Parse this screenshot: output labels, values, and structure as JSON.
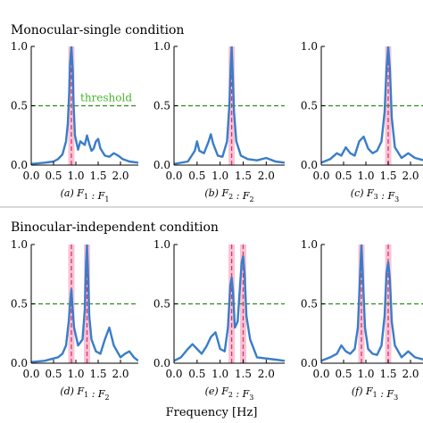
{
  "figure": {
    "section_titles": [
      "Monocular-single condition",
      "Binocular-independent condition"
    ],
    "xlabel": "Frequency [Hz]",
    "threshold_label": "threshold",
    "colors": {
      "curve": "#3a7dc9",
      "threshold": "#2e8b1f",
      "marker": "#e0326b",
      "band": "#f7b8cc",
      "axis": "#000000"
    }
  },
  "chart_data": [
    {
      "id": "a",
      "type": "line",
      "caption": "(a) F₁ : F₁",
      "caption_parts": {
        "index": "(a)",
        "left": "F",
        "left_sub": "1",
        "right": "F",
        "right_sub": "1"
      },
      "xlim": [
        0,
        2.4
      ],
      "ylim": [
        0,
        1.0
      ],
      "xticks": [
        "0.0",
        "0.5",
        "1.0",
        "1.5",
        "2.0"
      ],
      "yticks": [
        "0.0",
        "0.5",
        "1.0"
      ],
      "threshold": 0.5,
      "markers": [
        0.9
      ],
      "series": [
        {
          "x": [
            0,
            0.3,
            0.5,
            0.6,
            0.7,
            0.78,
            0.82,
            0.85,
            0.87,
            0.9,
            0.93,
            0.95,
            0.98,
            1.05,
            1.1,
            1.2,
            1.25,
            1.3,
            1.35,
            1.4,
            1.45,
            1.5,
            1.55,
            1.65,
            1.75,
            1.85,
            1.95,
            2.05,
            2.2,
            2.4
          ],
          "y": [
            0.01,
            0.02,
            0.03,
            0.05,
            0.09,
            0.2,
            0.35,
            0.6,
            0.85,
            1.0,
            0.8,
            0.5,
            0.25,
            0.13,
            0.2,
            0.17,
            0.25,
            0.18,
            0.12,
            0.14,
            0.2,
            0.22,
            0.14,
            0.08,
            0.07,
            0.1,
            0.08,
            0.05,
            0.03,
            0.02
          ]
        }
      ]
    },
    {
      "id": "b",
      "type": "line",
      "caption": "(b) F₂ : F₂",
      "caption_parts": {
        "index": "(b)",
        "left": "F",
        "left_sub": "2",
        "right": "F",
        "right_sub": "2"
      },
      "xlim": [
        0,
        2.4
      ],
      "ylim": [
        0,
        1.0
      ],
      "xticks": [
        "0.0",
        "0.5",
        "1.0",
        "1.5",
        "2.0"
      ],
      "yticks": [
        "0.0",
        "0.5",
        "1.0"
      ],
      "threshold": 0.5,
      "markers": [
        1.25
      ],
      "series": [
        {
          "x": [
            0,
            0.3,
            0.45,
            0.5,
            0.55,
            0.65,
            0.75,
            0.8,
            0.85,
            0.95,
            1.05,
            1.15,
            1.2,
            1.23,
            1.25,
            1.27,
            1.3,
            1.35,
            1.45,
            1.6,
            1.8,
            2.0,
            2.2,
            2.4
          ],
          "y": [
            0.01,
            0.03,
            0.12,
            0.2,
            0.12,
            0.1,
            0.2,
            0.26,
            0.18,
            0.08,
            0.07,
            0.2,
            0.5,
            0.85,
            1.0,
            0.8,
            0.45,
            0.2,
            0.08,
            0.05,
            0.04,
            0.06,
            0.03,
            0.02
          ]
        }
      ]
    },
    {
      "id": "c",
      "type": "line",
      "caption": "(c) F₃ : F₃",
      "caption_parts": {
        "index": "(c)",
        "left": "F",
        "left_sub": "3",
        "right": "F",
        "right_sub": "3"
      },
      "xlim": [
        0,
        2.4
      ],
      "ylim": [
        0,
        1.0
      ],
      "xticks": [
        "0.0",
        "0.5",
        "1.0",
        "1.5",
        "2.0"
      ],
      "yticks": [
        "0.0",
        "0.5",
        "1.0"
      ],
      "threshold": 0.5,
      "markers": [
        1.5
      ],
      "series": [
        {
          "x": [
            0,
            0.2,
            0.35,
            0.45,
            0.55,
            0.65,
            0.75,
            0.85,
            0.95,
            1.05,
            1.15,
            1.25,
            1.35,
            1.42,
            1.46,
            1.5,
            1.54,
            1.58,
            1.65,
            1.8,
            1.95,
            2.1,
            2.3,
            2.4
          ],
          "y": [
            0.02,
            0.05,
            0.1,
            0.08,
            0.15,
            0.1,
            0.08,
            0.2,
            0.24,
            0.14,
            0.1,
            0.12,
            0.2,
            0.45,
            0.8,
            1.0,
            0.8,
            0.4,
            0.15,
            0.06,
            0.1,
            0.06,
            0.04,
            0.03
          ]
        }
      ]
    },
    {
      "id": "d",
      "type": "line",
      "caption": "(d) F₁ : F₂",
      "caption_parts": {
        "index": "(d)",
        "left": "F",
        "left_sub": "1",
        "right": "F",
        "right_sub": "2"
      },
      "xlim": [
        0,
        2.4
      ],
      "ylim": [
        0,
        1.0
      ],
      "xticks": [
        "0.0",
        "0.5",
        "1.0",
        "1.5",
        "2.0"
      ],
      "yticks": [
        "0.0",
        "0.5",
        "1.0"
      ],
      "threshold": 0.5,
      "markers": [
        0.9,
        1.25
      ],
      "series": [
        {
          "x": [
            0,
            0.3,
            0.5,
            0.6,
            0.7,
            0.78,
            0.84,
            0.88,
            0.9,
            0.92,
            0.96,
            1.05,
            1.15,
            1.2,
            1.23,
            1.25,
            1.27,
            1.3,
            1.35,
            1.45,
            1.55,
            1.65,
            1.75,
            1.85,
            2.0,
            2.1,
            2.2,
            2.3,
            2.4
          ],
          "y": [
            0.01,
            0.02,
            0.04,
            0.05,
            0.08,
            0.15,
            0.35,
            0.55,
            0.62,
            0.5,
            0.3,
            0.15,
            0.2,
            0.45,
            0.85,
            1.0,
            0.8,
            0.4,
            0.2,
            0.1,
            0.08,
            0.2,
            0.3,
            0.15,
            0.05,
            0.08,
            0.1,
            0.05,
            0.02
          ]
        }
      ]
    },
    {
      "id": "e",
      "type": "line",
      "caption": "(e) F₂ : F₃",
      "caption_parts": {
        "index": "(e)",
        "left": "F",
        "left_sub": "2",
        "right": "F",
        "right_sub": "3"
      },
      "xlim": [
        0,
        2.4
      ],
      "ylim": [
        0,
        1.0
      ],
      "xticks": [
        "0.0",
        "0.5",
        "1.0",
        "1.5",
        "2.0"
      ],
      "yticks": [
        "0.0",
        "0.5",
        "1.0"
      ],
      "threshold": 0.5,
      "markers": [
        1.25,
        1.5
      ],
      "series": [
        {
          "x": [
            0,
            0.15,
            0.3,
            0.4,
            0.5,
            0.6,
            0.7,
            0.8,
            0.9,
            1.0,
            1.1,
            1.17,
            1.22,
            1.25,
            1.28,
            1.32,
            1.38,
            1.44,
            1.47,
            1.5,
            1.53,
            1.57,
            1.65,
            1.8,
            2.0,
            2.2,
            2.4
          ],
          "y": [
            0.02,
            0.05,
            0.12,
            0.16,
            0.12,
            0.08,
            0.14,
            0.22,
            0.26,
            0.12,
            0.1,
            0.3,
            0.65,
            0.72,
            0.6,
            0.3,
            0.35,
            0.7,
            0.85,
            0.9,
            0.75,
            0.4,
            0.2,
            0.05,
            0.04,
            0.03,
            0.02
          ]
        }
      ]
    },
    {
      "id": "f",
      "type": "line",
      "caption": "(f) F₁ : F₃",
      "caption_parts": {
        "index": "(f)",
        "left": "F",
        "left_sub": "1",
        "right": "F",
        "right_sub": "3"
      },
      "xlim": [
        0,
        2.4
      ],
      "ylim": [
        0,
        1.0
      ],
      "xticks": [
        "0.0",
        "0.5",
        "1.0",
        "1.5",
        "2.0"
      ],
      "yticks": [
        "0.0",
        "0.5",
        "1.0"
      ],
      "threshold": 0.5,
      "markers": [
        0.9,
        1.5
      ],
      "series": [
        {
          "x": [
            0,
            0.2,
            0.35,
            0.45,
            0.55,
            0.65,
            0.75,
            0.82,
            0.87,
            0.9,
            0.93,
            0.98,
            1.05,
            1.15,
            1.25,
            1.35,
            1.42,
            1.46,
            1.5,
            1.54,
            1.58,
            1.65,
            1.8,
            1.95,
            2.1,
            2.3,
            2.4
          ],
          "y": [
            0.02,
            0.05,
            0.08,
            0.15,
            0.1,
            0.08,
            0.12,
            0.3,
            0.75,
            1.0,
            0.75,
            0.3,
            0.12,
            0.08,
            0.07,
            0.15,
            0.4,
            0.75,
            0.85,
            0.7,
            0.35,
            0.15,
            0.05,
            0.1,
            0.05,
            0.03,
            0.02
          ]
        }
      ]
    }
  ]
}
